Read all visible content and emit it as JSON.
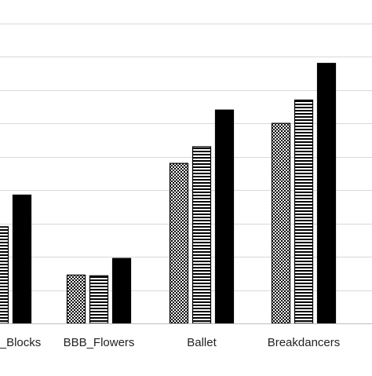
{
  "chart_data": {
    "type": "bar",
    "categories": [
      "BBB_Blocks",
      "BBB_Flowers",
      "Ballet",
      "Breakdancers"
    ],
    "category_labels": [
      "_Blocks",
      "BBB_Flowers",
      "Ballet",
      "Breakdancers"
    ],
    "series": [
      {
        "values": [
          2.9,
          1.45,
          4.8,
          6.0
        ],
        "pattern": "checkerboard"
      },
      {
        "values": [
          2.9,
          1.43,
          5.3,
          6.7
        ],
        "pattern": "horizontal-stripes"
      },
      {
        "values": [
          3.85,
          1.95,
          6.4,
          7.8
        ],
        "pattern": "solid"
      }
    ],
    "ylim": [
      0,
      9.7
    ],
    "gridline_step": 1,
    "grid": true,
    "legend": "none",
    "colors": {
      "bar": "#000000",
      "grid": "#d9d9d9",
      "axis": "#bfbfbf",
      "text": "#222222"
    }
  }
}
